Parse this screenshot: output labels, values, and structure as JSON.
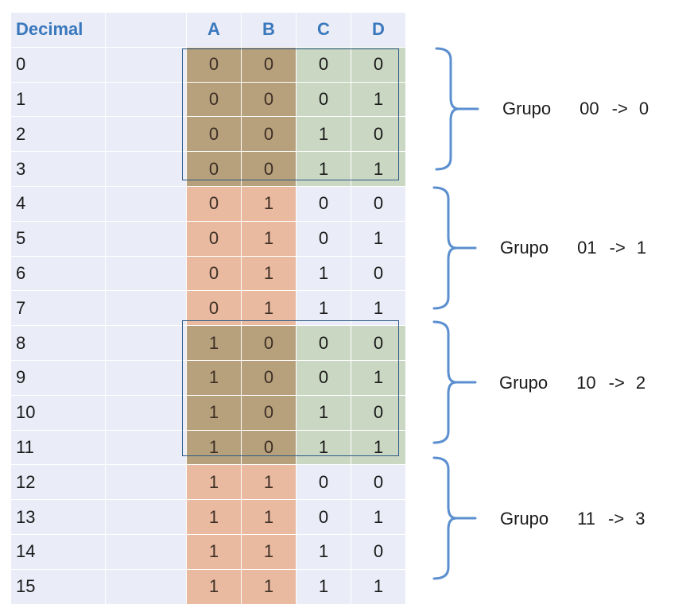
{
  "table": {
    "headers": {
      "decimal": "Decimal",
      "a": "A",
      "b": "B",
      "c": "C",
      "d": "D"
    },
    "rows": [
      {
        "dec": "0",
        "a": "0",
        "b": "0",
        "c": "0",
        "d": "0"
      },
      {
        "dec": "1",
        "a": "0",
        "b": "0",
        "c": "0",
        "d": "1"
      },
      {
        "dec": "2",
        "a": "0",
        "b": "0",
        "c": "1",
        "d": "0"
      },
      {
        "dec": "3",
        "a": "0",
        "b": "0",
        "c": "1",
        "d": "1"
      },
      {
        "dec": "4",
        "a": "0",
        "b": "1",
        "c": "0",
        "d": "0"
      },
      {
        "dec": "5",
        "a": "0",
        "b": "1",
        "c": "0",
        "d": "1"
      },
      {
        "dec": "6",
        "a": "0",
        "b": "1",
        "c": "1",
        "d": "0"
      },
      {
        "dec": "7",
        "a": "0",
        "b": "1",
        "c": "1",
        "d": "1"
      },
      {
        "dec": "8",
        "a": "1",
        "b": "0",
        "c": "0",
        "d": "0"
      },
      {
        "dec": "9",
        "a": "1",
        "b": "0",
        "c": "0",
        "d": "1"
      },
      {
        "dec": "10",
        "a": "1",
        "b": "0",
        "c": "1",
        "d": "0"
      },
      {
        "dec": "11",
        "a": "1",
        "b": "0",
        "c": "1",
        "d": "1"
      },
      {
        "dec": "12",
        "a": "1",
        "b": "1",
        "c": "0",
        "d": "0"
      },
      {
        "dec": "13",
        "a": "1",
        "b": "1",
        "c": "0",
        "d": "1"
      },
      {
        "dec": "14",
        "a": "1",
        "b": "1",
        "c": "1",
        "d": "0"
      },
      {
        "dec": "15",
        "a": "1",
        "b": "1",
        "c": "1",
        "d": "1"
      }
    ]
  },
  "groups": [
    {
      "word": "Grupo",
      "code": "00",
      "arrow": "->",
      "value": "0"
    },
    {
      "word": "Grupo",
      "code": "01",
      "arrow": "->",
      "value": "1"
    },
    {
      "word": "Grupo",
      "code": "10",
      "arrow": "->",
      "value": "2"
    },
    {
      "word": "Grupo",
      "code": "11",
      "arrow": "->",
      "value": "3"
    }
  ],
  "colors": {
    "header_text": "#3a78bd",
    "cell_background": "#eaecf7",
    "ab_highlight": "#e9b9a0",
    "ab_overlap": "#b7a07c",
    "cd_highlight": "#cad7c2",
    "bracket": "#5b8fcf",
    "group_border": "#2e5a86"
  }
}
